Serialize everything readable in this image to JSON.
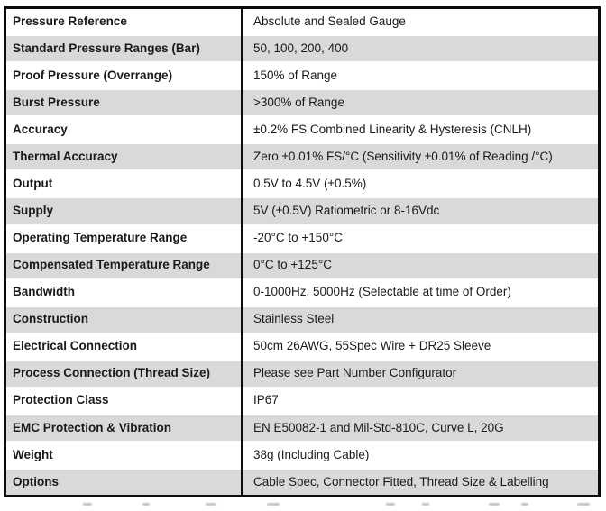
{
  "colors": {
    "row_shade": "#d9d9d9",
    "border": "#0d0d0d",
    "text": "#1a1a1a"
  },
  "table": {
    "rows": [
      {
        "label": "Pressure Reference",
        "value": "Absolute and Sealed Gauge"
      },
      {
        "label": "Standard Pressure Ranges (Bar)",
        "value": "50, 100, 200, 400"
      },
      {
        "label": "Proof Pressure (Overrange)",
        "value": "150% of Range"
      },
      {
        "label": "Burst Pressure",
        "value": ">300% of Range"
      },
      {
        "label": "Accuracy",
        "value": "±0.2% FS Combined Linearity & Hysteresis (CNLH)"
      },
      {
        "label": "Thermal Accuracy",
        "value": "Zero ±0.01% FS/°C (Sensitivity ±0.01% of Reading /°C)"
      },
      {
        "label": "Output",
        "value": "0.5V to 4.5V (±0.5%)"
      },
      {
        "label": "Supply",
        "value": "5V (±0.5V) Ratiometric or 8-16Vdc"
      },
      {
        "label": "Operating Temperature Range",
        "value": "-20°C to +150°C"
      },
      {
        "label": "Compensated Temperature Range",
        "value": "0°C to +125°C"
      },
      {
        "label": "Bandwidth",
        "value": "0-1000Hz, 5000Hz (Selectable at time of Order)"
      },
      {
        "label": "Construction",
        "value": "Stainless Steel"
      },
      {
        "label": "Electrical Connection",
        "value": "50cm 26AWG, 55Spec Wire + DR25 Sleeve"
      },
      {
        "label": "Process Connection (Thread Size)",
        "value": "Please see Part Number Configurator"
      },
      {
        "label": "Protection Class",
        "value": "IP67"
      },
      {
        "label": "EMC Protection & Vibration",
        "value": "EN E50082-1 and Mil-Std-810C, Curve L, 20G"
      },
      {
        "label": "Weight",
        "value": "38g (Including Cable)"
      },
      {
        "label": "Options",
        "value": "Cable Spec, Connector Fitted, Thread Size & Labelling"
      }
    ]
  }
}
